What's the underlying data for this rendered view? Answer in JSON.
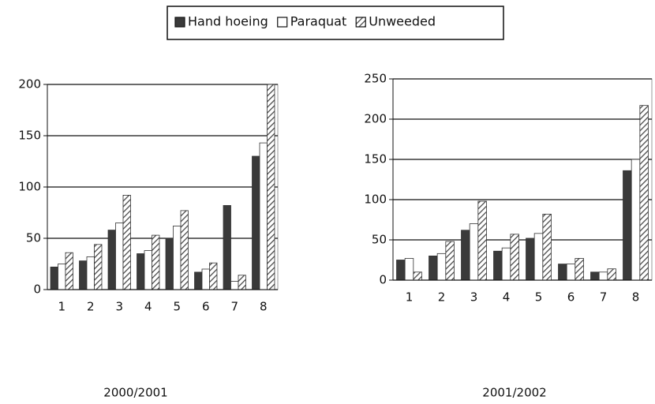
{
  "chart_data": [
    {
      "type": "bar",
      "title": "2000/2001",
      "categories": [
        "1",
        "2",
        "3",
        "4",
        "5",
        "6",
        "7",
        "8"
      ],
      "series": [
        {
          "name": "Hand hoeing",
          "color": "#3a3a3a",
          "values": [
            22,
            28,
            58,
            35,
            50,
            17,
            82,
            130
          ]
        },
        {
          "name": "Paraquat",
          "color": "#ffffff",
          "values": [
            25,
            32,
            65,
            38,
            62,
            20,
            8,
            143
          ]
        },
        {
          "name": "Unweeded",
          "color": "#8a8a8a",
          "pattern": "hatch",
          "values": [
            36,
            44,
            92,
            53,
            77,
            26,
            14,
            200
          ]
        }
      ],
      "ylim": [
        0,
        200
      ],
      "yticks": [
        0,
        50,
        100,
        150,
        200
      ],
      "grid": true
    },
    {
      "type": "bar",
      "title": "2001/2002",
      "categories": [
        "1",
        "2",
        "3",
        "4",
        "5",
        "6",
        "7",
        "8"
      ],
      "series": [
        {
          "color": "#3a3a3a",
          "values": [
            25,
            30,
            62,
            36,
            52,
            20,
            10,
            136
          ]
        },
        {
          "color": "#ffffff",
          "values": [
            27,
            33,
            70,
            40,
            58,
            20,
            10,
            150
          ]
        },
        {
          "color": "#8a8a8a",
          "pattern": "hatch",
          "values": [
            10,
            48,
            98,
            57,
            82,
            27,
            14,
            217
          ]
        }
      ],
      "ylim": [
        0,
        250
      ],
      "yticks": [
        0,
        50,
        100,
        150,
        200,
        250
      ],
      "grid": true
    }
  ]
}
